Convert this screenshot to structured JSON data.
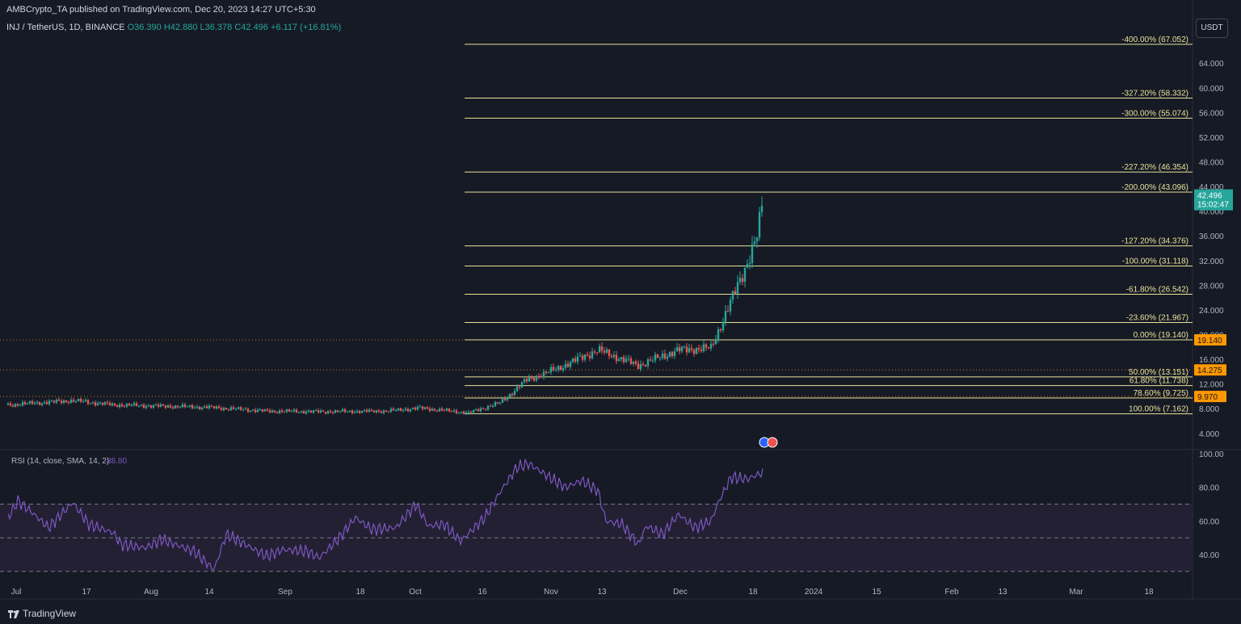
{
  "publisher_line": "AMBCrypto_TA published on TradingView.com, Dec 20, 2023 14:27 UTC+5:30",
  "ohlc": {
    "symbol": "INJ / TetherUS, 1D, BINANCE",
    "open": "O36.390",
    "high": "H42.880",
    "low": "L36.378",
    "close": "C42.496",
    "change": "+6.117 (+16.81%)"
  },
  "currency_button": "USDT",
  "brand": "TradingView",
  "colors": {
    "background": "#161a25",
    "up": "#26a69a",
    "down": "#ef5350",
    "fib_line": "#e8e29a",
    "rsi_line": "#7e57c2",
    "rsi_band": "#2a2439",
    "price_tag_orange": "#ff9800",
    "last_price_tag": "#26a69a"
  },
  "chart_data": [
    {
      "type": "candlestick",
      "y_axis": {
        "ylim": [
          2.4,
          69
        ],
        "ticks": [
          "4.000",
          "8.000",
          "12.000",
          "16.000",
          "20.000",
          "24.000",
          "28.000",
          "32.000",
          "36.000",
          "40.000",
          "44.000",
          "48.000",
          "52.000",
          "56.000",
          "60.000",
          "64.000"
        ]
      },
      "x_axis": {
        "ticks": [
          "Jul",
          "17",
          "Aug",
          "14",
          "Sep",
          "18",
          "Oct",
          "16",
          "Nov",
          "13",
          "Dec",
          "18",
          "2024",
          "15",
          "Feb",
          "13",
          "Mar",
          "18"
        ]
      },
      "fib_levels": [
        {
          "label": "-400.00% (67.052)",
          "value": 67.052
        },
        {
          "label": "-327.20% (58.332)",
          "value": 58.332
        },
        {
          "label": "-300.00% (55.074)",
          "value": 55.074
        },
        {
          "label": "-227.20% (46.354)",
          "value": 46.354
        },
        {
          "label": "-200.00% (43.096)",
          "value": 43.096
        },
        {
          "label": "-127.20% (34.376)",
          "value": 34.376
        },
        {
          "label": "-100.00% (31.118)",
          "value": 31.118
        },
        {
          "label": "-61.80% (26.542)",
          "value": 26.542
        },
        {
          "label": "-23.60% (21.967)",
          "value": 21.967
        },
        {
          "label": "0.00% (19.140)",
          "value": 19.14
        },
        {
          "label": "50.00% (13.151)",
          "value": 13.151
        },
        {
          "label": "61.80% (11.738)",
          "value": 11.738
        },
        {
          "label": "78.60% (9.725)",
          "value": 9.725
        },
        {
          "label": "100.00% (7.162)",
          "value": 7.162
        }
      ],
      "horizontal_levels": [
        {
          "label": "19.140",
          "value": 19.14
        },
        {
          "label": "14.275",
          "value": 14.275
        },
        {
          "label": "9.970",
          "value": 9.97
        }
      ],
      "last_price": {
        "value": 42.496,
        "label": "42.496",
        "countdown": "15:02:47"
      }
    },
    {
      "type": "line",
      "title": "RSI (14, close, SMA, 14, 2)",
      "last_value": "88.80",
      "y_axis": {
        "ylim": [
          28,
          101
        ],
        "ticks": [
          "40.00",
          "60.00",
          "80.00",
          "100.00"
        ]
      },
      "band": [
        30,
        70
      ],
      "midline": 50
    }
  ]
}
